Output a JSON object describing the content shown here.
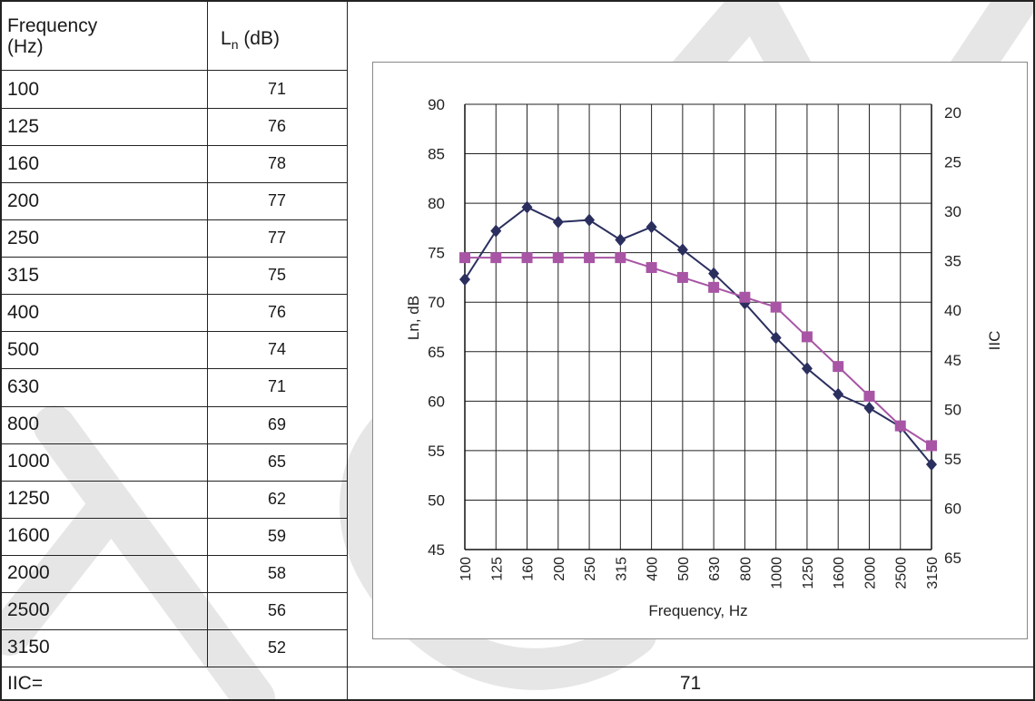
{
  "table": {
    "header_freq_line1": "Frequency",
    "header_freq_line2": "(Hz)",
    "header_ln_main": "L",
    "header_ln_sub": "n",
    "header_ln_unit": " (dB)",
    "rows": [
      {
        "freq": "100",
        "ln": "71"
      },
      {
        "freq": "125",
        "ln": "76"
      },
      {
        "freq": "160",
        "ln": "78"
      },
      {
        "freq": "200",
        "ln": "77"
      },
      {
        "freq": "250",
        "ln": "77"
      },
      {
        "freq": "315",
        "ln": "75"
      },
      {
        "freq": "400",
        "ln": "76"
      },
      {
        "freq": "500",
        "ln": "74"
      },
      {
        "freq": "630",
        "ln": "71"
      },
      {
        "freq": "800",
        "ln": "69"
      },
      {
        "freq": "1000",
        "ln": "65"
      },
      {
        "freq": "1250",
        "ln": "62"
      },
      {
        "freq": "1600",
        "ln": "59"
      },
      {
        "freq": "2000",
        "ln": "58"
      },
      {
        "freq": "2500",
        "ln": "56"
      },
      {
        "freq": "3150",
        "ln": "52"
      }
    ],
    "iic_label": "IIC=",
    "iic_value": "71"
  },
  "chart_data": {
    "type": "line",
    "xlabel": "Frequency, Hz",
    "ylabel": "Ln, dB",
    "y2label": "IIC",
    "categories": [
      "100",
      "125",
      "160",
      "200",
      "250",
      "315",
      "400",
      "500",
      "630",
      "800",
      "1000",
      "1250",
      "1600",
      "2000",
      "2500",
      "3150"
    ],
    "ylim": [
      45,
      90
    ],
    "yticks": [
      45,
      50,
      55,
      60,
      65,
      70,
      75,
      80,
      85,
      90
    ],
    "y2ticks": [
      65,
      60,
      55,
      50,
      45,
      40,
      35,
      30,
      25,
      20
    ],
    "grid": true,
    "series": [
      {
        "marker": "diamond",
        "color": "#2b2f5e",
        "values": [
          72.3,
          77.2,
          79.6,
          78.1,
          78.3,
          76.3,
          77.6,
          75.3,
          72.9,
          69.9,
          66.4,
          63.3,
          60.7,
          59.3,
          57.4,
          53.6
        ]
      },
      {
        "marker": "square",
        "color": "#a855a5",
        "values": [
          74.5,
          74.5,
          74.5,
          74.5,
          74.5,
          74.5,
          73.5,
          72.5,
          71.5,
          70.5,
          69.5,
          66.5,
          63.5,
          60.5,
          57.5,
          55.5
        ]
      }
    ]
  },
  "colors": {
    "line_dark": "#2b2f5e",
    "line_pink": "#a855a5",
    "watermark": "#dcdcdc"
  }
}
